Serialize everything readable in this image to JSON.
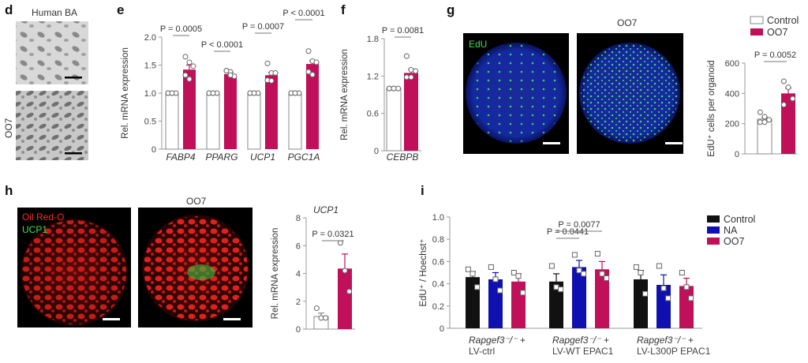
{
  "colors": {
    "control": "#ffffff",
    "oo7": "#c0105a",
    "na": "#1010b0",
    "black": "#111111",
    "axis": "#999999"
  },
  "panel_d": {
    "label": "d",
    "title": "Human BA",
    "side_label": "OO7"
  },
  "panel_g": {
    "label": "g",
    "image_title": "OO7",
    "stain": "EdU"
  },
  "panel_h": {
    "label": "h",
    "image_title": "OO7",
    "stain1": "Oil Red-O",
    "stain2": "UCP1"
  },
  "chart_data": [
    {
      "id": "e",
      "panel_label": "e",
      "type": "bar",
      "ylabel": "Rel. mRNA expression",
      "ylim": [
        0,
        2.0
      ],
      "yticks": [
        "0",
        "0.5",
        "1.0",
        "1.5",
        "2.0"
      ],
      "ytick_values": [
        0,
        0.5,
        1.0,
        1.5,
        2.0
      ],
      "categories": [
        "FABP4",
        "PPARG",
        "UCP1",
        "PGC1A"
      ],
      "series": [
        {
          "name": "Control",
          "values": [
            1.0,
            1.0,
            1.0,
            1.0
          ],
          "errors": [
            0,
            0,
            0,
            0
          ],
          "points": [
            [
              1,
              1,
              1,
              1,
              1
            ],
            [
              1,
              1,
              1,
              1,
              1
            ],
            [
              1,
              1,
              1,
              1,
              1
            ],
            [
              1,
              1,
              1,
              1,
              1
            ]
          ]
        },
        {
          "name": "OO7",
          "values": [
            1.42,
            1.34,
            1.32,
            1.52
          ],
          "errors": [
            0.08,
            0.03,
            0.05,
            0.06
          ],
          "points": [
            [
              1.65,
              1.55,
              1.48,
              1.32,
              1.25
            ],
            [
              1.4,
              1.38,
              1.3,
              1.4,
              1.32
            ],
            [
              1.53,
              1.36,
              1.36,
              1.23,
              1.22
            ],
            [
              1.75,
              1.57,
              1.55,
              1.38,
              1.33
            ]
          ]
        }
      ],
      "pvalues": [
        "P = 0.0005",
        "P < 0.0001",
        "P = 0.0007",
        "P < 0.0001"
      ]
    },
    {
      "id": "f",
      "panel_label": "f",
      "type": "bar",
      "ylabel": "Rel. mRNA expression",
      "ylim": [
        0,
        1.8
      ],
      "yticks": [
        "0",
        "0.6",
        "1.2",
        "1.8"
      ],
      "ytick_values": [
        0,
        0.6,
        1.2,
        1.8
      ],
      "categories": [
        "CEBPB"
      ],
      "series": [
        {
          "name": "Control",
          "values": [
            1.0
          ],
          "errors": [
            0
          ],
          "points": [
            [
              1,
              1,
              1,
              1,
              1
            ]
          ]
        },
        {
          "name": "OO7",
          "values": [
            1.25
          ],
          "errors": [
            0.06
          ],
          "points": [
            [
              1.52,
              1.3,
              1.28,
              1.18,
              1.18
            ]
          ]
        }
      ],
      "pvalues": [
        "P = 0.0081"
      ]
    },
    {
      "id": "g",
      "type": "bar",
      "ylabel": "EdU⁺ cells per organoid",
      "ylim": [
        0,
        600
      ],
      "yticks": [
        "0",
        "200",
        "400",
        "600"
      ],
      "ytick_values": [
        0,
        200,
        400,
        600
      ],
      "categories": [
        ""
      ],
      "series": [
        {
          "name": "Control",
          "values": [
            230
          ],
          "errors": [
            12
          ],
          "points": [
            [
              275,
              245,
              225,
              210,
              210
            ]
          ]
        },
        {
          "name": "OO7",
          "values": [
            400
          ],
          "errors": [
            35
          ],
          "points": [
            [
              480,
              440,
              365,
              325
            ]
          ]
        }
      ],
      "pvalues": [
        "P = 0.0052"
      ],
      "legend": [
        "Control",
        "OO7"
      ],
      "legend_position": "top"
    },
    {
      "id": "h",
      "type": "bar",
      "title": "UCP1",
      "ylabel": "Rel. mRNA expression",
      "ylim": [
        0,
        8
      ],
      "yticks": [
        "0",
        "2",
        "4",
        "6",
        "8"
      ],
      "ytick_values": [
        0,
        2,
        4,
        6,
        8
      ],
      "categories": [
        ""
      ],
      "series": [
        {
          "name": "Control",
          "values": [
            0.9
          ],
          "errors": [
            0.25
          ],
          "points": [
            [
              1.5,
              0.8,
              0.8
            ]
          ]
        },
        {
          "name": "OO7",
          "values": [
            4.35
          ],
          "errors": [
            1.05
          ],
          "points": [
            [
              6.2,
              4.2,
              2.7
            ]
          ]
        }
      ],
      "pvalues": [
        "P = 0.0321"
      ]
    },
    {
      "id": "i",
      "panel_label": "i",
      "type": "bar",
      "ylabel": "EdU⁺ / Hoechst⁺",
      "ylim": [
        0,
        1.0
      ],
      "yticks": [
        "0",
        "0.2",
        "0.4",
        "0.6",
        "0.8",
        "1.0"
      ],
      "ytick_values": [
        0,
        0.2,
        0.4,
        0.6,
        0.8,
        1.0
      ],
      "categories": [
        [
          "Rapgef3⁻/⁻ +",
          "LV-ctrl"
        ],
        [
          "Rapgef3⁻/⁻ +",
          "LV-WT EPAC1"
        ],
        [
          "Rapgef3⁻/⁻ +",
          "LV-L300P EPAC1"
        ]
      ],
      "series": [
        {
          "name": "Control",
          "values": [
            0.46,
            0.42,
            0.44
          ],
          "errors": [
            0.05,
            0.07,
            0.08
          ],
          "points": [
            [
              0.53,
              0.49,
              0.37
            ],
            [
              0.56,
              0.37,
              0.35
            ],
            [
              0.55,
              0.5,
              0.31
            ]
          ]
        },
        {
          "name": "NA",
          "values": [
            0.44,
            0.55,
            0.39
          ],
          "errors": [
            0.06,
            0.06,
            0.09
          ],
          "points": [
            [
              0.55,
              0.44,
              0.34
            ],
            [
              0.66,
              0.52,
              0.49
            ],
            [
              0.56,
              0.36,
              0.27
            ]
          ]
        },
        {
          "name": "OO7",
          "values": [
            0.42,
            0.53,
            0.38
          ],
          "errors": [
            0.07,
            0.07,
            0.07
          ],
          "points": [
            [
              0.5,
              0.47,
              0.32
            ],
            [
              0.67,
              0.49,
              0.45
            ],
            [
              0.5,
              0.37,
              0.27
            ]
          ]
        }
      ],
      "pvalues": [
        "P = 0.0441",
        "P = 0.0077"
      ],
      "legend": [
        "Control",
        "NA",
        "OO7"
      ],
      "legend_position": "right"
    }
  ]
}
